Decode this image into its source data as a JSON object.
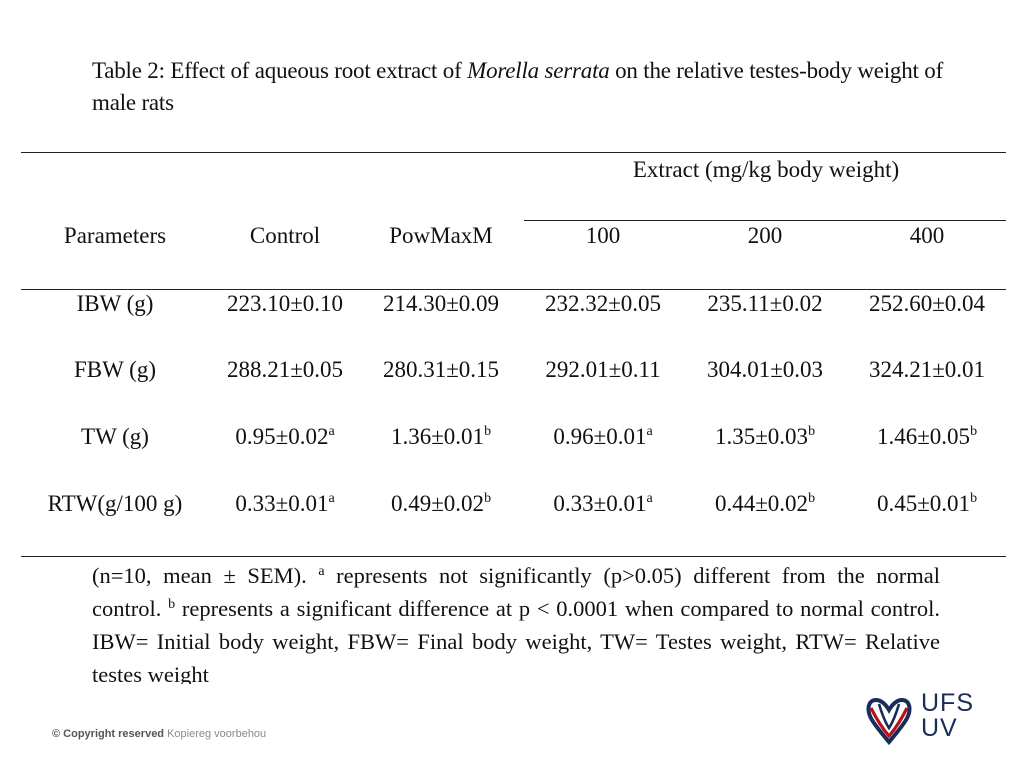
{
  "caption": {
    "prefix": "Table 2: Effect of aqueous root extract of ",
    "species": "Morella serrata",
    "suffix": " on the relative testes-body weight of male rats"
  },
  "table": {
    "group_header": "Extract (mg/kg body weight)",
    "headers": [
      "Parameters",
      "Control",
      "PowMaxM",
      "100",
      "200",
      "400"
    ],
    "rows": [
      {
        "label": "IBW (g)",
        "cells": [
          {
            "value": "223.10±0.10",
            "sup": ""
          },
          {
            "value": "214.30±0.09",
            "sup": ""
          },
          {
            "value": "232.32±0.05",
            "sup": ""
          },
          {
            "value": "235.11±0.02",
            "sup": ""
          },
          {
            "value": "252.60±0.04",
            "sup": ""
          }
        ]
      },
      {
        "label": "FBW (g)",
        "cells": [
          {
            "value": "288.21±0.05",
            "sup": ""
          },
          {
            "value": "280.31±0.15",
            "sup": ""
          },
          {
            "value": "292.01±0.11",
            "sup": ""
          },
          {
            "value": "304.01±0.03",
            "sup": ""
          },
          {
            "value": "324.21±0.01",
            "sup": ""
          }
        ]
      },
      {
        "label": "TW (g)",
        "cells": [
          {
            "value": "0.95±0.02",
            "sup": "a"
          },
          {
            "value": "1.36±0.01",
            "sup": "b"
          },
          {
            "value": "0.96±0.01",
            "sup": "a"
          },
          {
            "value": "1.35±0.03",
            "sup": "b"
          },
          {
            "value": "1.46±0.05",
            "sup": "b"
          }
        ]
      },
      {
        "label": "RTW(g/100 g)",
        "cells": [
          {
            "value": "0.33±0.01",
            "sup": "a"
          },
          {
            "value": "0.49±0.02",
            "sup": "b"
          },
          {
            "value": "0.33±0.01",
            "sup": "a"
          },
          {
            "value": "0.44±0.02",
            "sup": "b"
          },
          {
            "value": "0.45±0.01",
            "sup": "b"
          }
        ]
      }
    ]
  },
  "footnote": {
    "part1": "(n=10, mean ± SEM). ",
    "sup_a": "a",
    "part2": " represents not significantly (p>0.05) different from the normal control. ",
    "sup_b": "b",
    "part3": " represents a significant difference at p < 0.0001 when compared to normal control. IBW= Initial body weight, FBW= Final body weight, TW= Testes weight, RTW= Relative testes weight"
  },
  "footer": {
    "copyright_strong": "© Copyright reserved",
    "copyright_soft": "Kopiereg voorbehou",
    "logo_line1": "UFS",
    "logo_line2": "UV",
    "logo_colors": {
      "navy": "#1a2d5a",
      "red": "#b5121b"
    }
  }
}
